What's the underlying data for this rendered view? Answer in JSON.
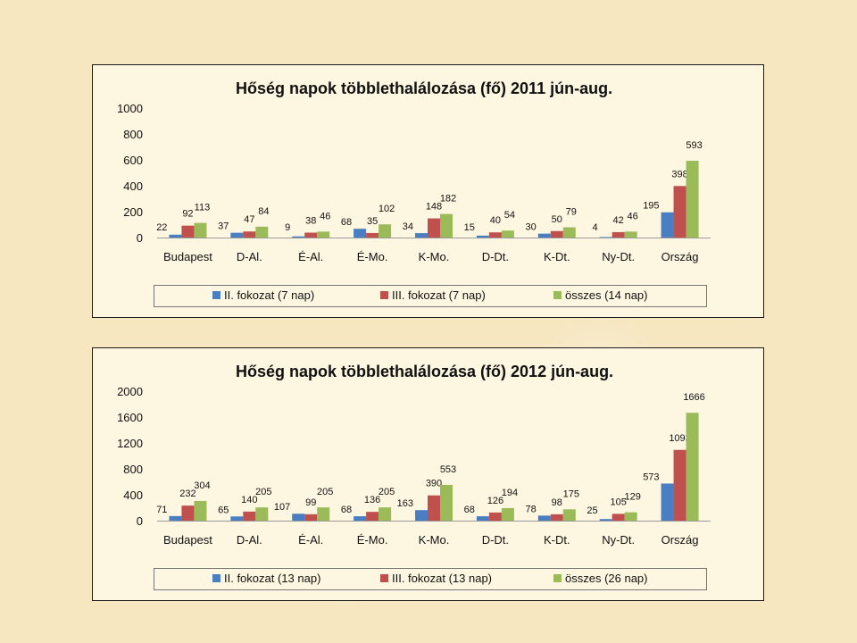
{
  "chart_data": [
    {
      "type": "bar",
      "title": "Hőség napok többlethalálozása (fő) 2011 jún-aug.",
      "categories": [
        "Budapest",
        "D-Al.",
        "É-Al.",
        "É-Mo.",
        "K-Mo.",
        "D-Dt.",
        "K-Dt.",
        "Ny-Dt.",
        "Ország"
      ],
      "ylim": [
        0,
        1000
      ],
      "yticks": [
        0,
        200,
        400,
        600,
        800,
        1000
      ],
      "legend_position": "bottom",
      "series": [
        {
          "name": "II. fokozat (7 nap)",
          "color": "#4a7ec2",
          "values": [
            22,
            37,
            9,
            68,
            34,
            15,
            30,
            4,
            195
          ]
        },
        {
          "name": "III. fokozat (7 nap)",
          "color": "#c0504d",
          "values": [
            92,
            47,
            38,
            35,
            148,
            40,
            50,
            42,
            398
          ]
        },
        {
          "name": "összes (14 nap)",
          "color": "#9bbb59",
          "values": [
            113,
            84,
            46,
            102,
            182,
            54,
            79,
            46,
            593
          ]
        }
      ]
    },
    {
      "type": "bar",
      "title": "Hőség napok többlethalálozása (fő) 2012 jún-aug.",
      "categories": [
        "Budapest",
        "D-Al.",
        "É-Al.",
        "É-Mo.",
        "K-Mo.",
        "D-Dt.",
        "K-Dt.",
        "Ny-Dt.",
        "Ország"
      ],
      "ylim": [
        0,
        2000
      ],
      "yticks": [
        0,
        400,
        800,
        1200,
        1600,
        2000
      ],
      "legend_position": "bottom",
      "series": [
        {
          "name": "II. fokozat (13 nap)",
          "color": "#4a7ec2",
          "values": [
            71,
            65,
            107,
            68,
            163,
            68,
            78,
            25,
            573
          ]
        },
        {
          "name": "III. fokozat (13 nap)",
          "color": "#c0504d",
          "values": [
            232,
            140,
            99,
            136,
            390,
            126,
            98,
            105,
            1093
          ]
        },
        {
          "name": "összes (26 nap)",
          "color": "#9bbb59",
          "values": [
            304,
            205,
            205,
            205,
            553,
            194,
            175,
            129,
            1666
          ]
        }
      ]
    }
  ]
}
